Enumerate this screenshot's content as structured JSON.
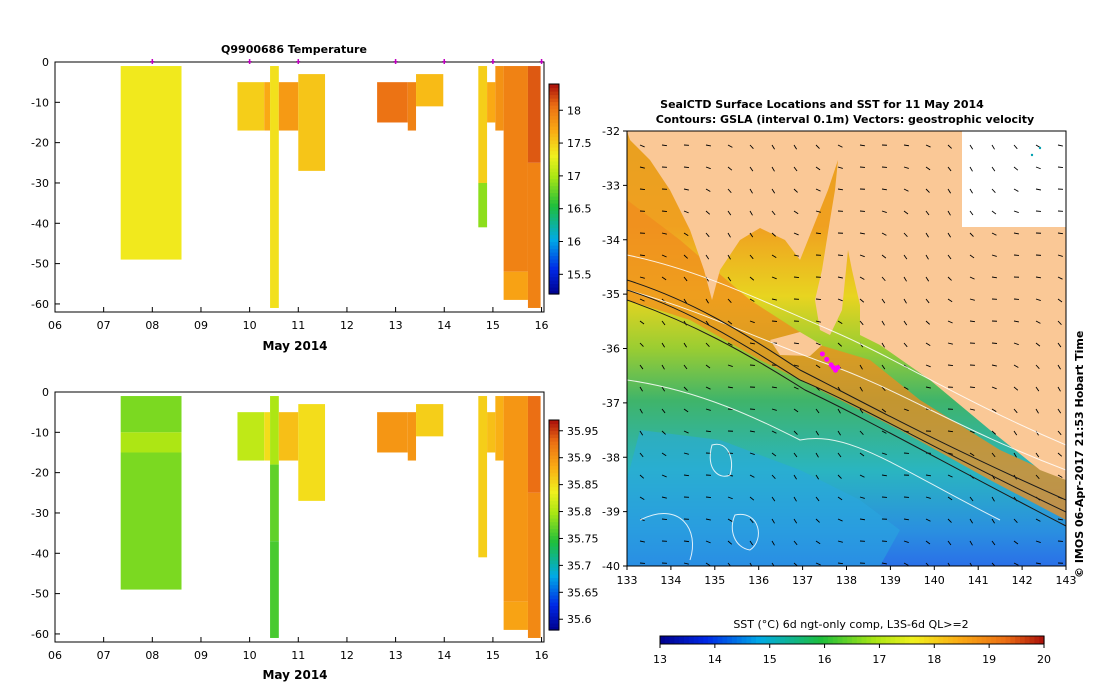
{
  "chart_data": [
    {
      "type": "heatmap",
      "title": "Q9900686  Temperature",
      "xlabel": "May 2014",
      "x_ticks": [
        "06",
        "07",
        "08",
        "09",
        "10",
        "11",
        "12",
        "13",
        "14",
        "15",
        "16"
      ],
      "y_ticks": [
        "0",
        "-10",
        "-20",
        "-30",
        "-40",
        "-50",
        "-60"
      ],
      "xlim": [
        6,
        16.05
      ],
      "ylim": [
        -62,
        0
      ],
      "colorbar": {
        "ticks": [
          "15.5",
          "16",
          "16.5",
          "17",
          "17.5",
          "18"
        ],
        "range": [
          15.2,
          18.4
        ]
      },
      "profile_markers": [
        8.0,
        10.0,
        11.0,
        13.0,
        14.0,
        15.0,
        16.0
      ],
      "profiles": [
        {
          "x0": 7.35,
          "x1": 8.6,
          "segments": [
            [
              -1,
              -49,
              17.35
            ]
          ]
        },
        {
          "x0": 9.75,
          "x1": 10.3,
          "segments": [
            [
              -5,
              -17,
              17.5
            ]
          ]
        },
        {
          "x0": 10.3,
          "x1": 10.42,
          "segments": [
            [
              -5,
              -17,
              17.7
            ]
          ]
        },
        {
          "x0": 10.42,
          "x1": 10.6,
          "segments": [
            [
              -1,
              -61,
              17.4
            ]
          ]
        },
        {
          "x0": 10.6,
          "x1": 11.0,
          "segments": [
            [
              -5,
              -17,
              17.8
            ]
          ]
        },
        {
          "x0": 11.0,
          "x1": 11.55,
          "segments": [
            [
              -3,
              -27,
              17.55
            ]
          ]
        },
        {
          "x0": 12.62,
          "x1": 13.25,
          "segments": [
            [
              -5,
              -15,
              18.05
            ]
          ]
        },
        {
          "x0": 13.25,
          "x1": 13.42,
          "segments": [
            [
              -5,
              -17,
              17.95
            ]
          ]
        },
        {
          "x0": 13.42,
          "x1": 13.98,
          "segments": [
            [
              -3,
              -11,
              17.6
            ]
          ]
        },
        {
          "x0": 14.7,
          "x1": 14.88,
          "segments": [
            [
              -1,
              -30,
              17.5
            ],
            [
              -30,
              -41,
              16.9
            ]
          ]
        },
        {
          "x0": 14.88,
          "x1": 15.05,
          "segments": [
            [
              -5,
              -15,
              17.7
            ]
          ]
        },
        {
          "x0": 15.05,
          "x1": 15.22,
          "segments": [
            [
              -1,
              -17,
              17.85
            ]
          ]
        },
        {
          "x0": 15.22,
          "x1": 15.72,
          "segments": [
            [
              -1,
              -52,
              17.95
            ],
            [
              -52,
              -59,
              17.75
            ]
          ]
        },
        {
          "x0": 15.72,
          "x1": 15.98,
          "segments": [
            [
              -1,
              -25,
              18.15
            ],
            [
              -25,
              -61,
              17.95
            ]
          ]
        }
      ]
    },
    {
      "type": "heatmap",
      "xlabel": "May 2014",
      "x_ticks": [
        "06",
        "07",
        "08",
        "09",
        "10",
        "11",
        "12",
        "13",
        "14",
        "15",
        "16"
      ],
      "y_ticks": [
        "0",
        "-10",
        "-20",
        "-30",
        "-40",
        "-50",
        "-60"
      ],
      "xlim": [
        6,
        16.05
      ],
      "ylim": [
        -62,
        0
      ],
      "colorbar": {
        "ticks": [
          "35.6",
          "35.65",
          "35.7",
          "35.75",
          "35.8",
          "35.85",
          "35.9",
          "35.95"
        ],
        "range": [
          35.58,
          35.97
        ]
      },
      "profiles": [
        {
          "x0": 7.35,
          "x1": 8.6,
          "segments": [
            [
              -1,
              -10,
              35.78
            ],
            [
              -10,
              -15,
              35.8
            ],
            [
              -15,
              -49,
              35.78
            ]
          ]
        },
        {
          "x0": 9.75,
          "x1": 10.3,
          "segments": [
            [
              -5,
              -17,
              35.81
            ]
          ]
        },
        {
          "x0": 10.3,
          "x1": 10.42,
          "segments": [
            [
              -5,
              -17,
              35.85
            ]
          ]
        },
        {
          "x0": 10.42,
          "x1": 10.6,
          "segments": [
            [
              -1,
              -18,
              35.8
            ],
            [
              -18,
              -37,
              35.77
            ],
            [
              -37,
              -61,
              35.76
            ]
          ]
        },
        {
          "x0": 10.6,
          "x1": 11.0,
          "segments": [
            [
              -5,
              -17,
              35.87
            ]
          ]
        },
        {
          "x0": 11.0,
          "x1": 11.55,
          "segments": [
            [
              -3,
              -27,
              35.85
            ]
          ]
        },
        {
          "x0": 12.62,
          "x1": 13.25,
          "segments": [
            [
              -5,
              -15,
              35.9
            ]
          ]
        },
        {
          "x0": 13.25,
          "x1": 13.42,
          "segments": [
            [
              -5,
              -17,
              35.9
            ]
          ]
        },
        {
          "x0": 13.42,
          "x1": 13.98,
          "segments": [
            [
              -3,
              -11,
              35.86
            ]
          ]
        },
        {
          "x0": 14.7,
          "x1": 14.88,
          "segments": [
            [
              -1,
              -41,
              35.86
            ]
          ]
        },
        {
          "x0": 14.88,
          "x1": 15.05,
          "segments": [
            [
              -5,
              -15,
              35.87
            ]
          ]
        },
        {
          "x0": 15.05,
          "x1": 15.22,
          "segments": [
            [
              -1,
              -17,
              35.88
            ]
          ]
        },
        {
          "x0": 15.22,
          "x1": 15.72,
          "segments": [
            [
              -1,
              -52,
              35.9
            ],
            [
              -52,
              -59,
              35.89
            ]
          ]
        },
        {
          "x0": 15.72,
          "x1": 15.98,
          "segments": [
            [
              -1,
              -25,
              35.93
            ],
            [
              -25,
              -61,
              35.91
            ]
          ]
        }
      ]
    },
    {
      "type": "map",
      "title_line1": "SealCTD Surface Locations and SST for 11 May 2014",
      "title_line2": "Contours: GSLA (interval 0.1m) Vectors: geostrophic velocity",
      "x_ticks": [
        "133",
        "134",
        "135",
        "136",
        "137",
        "138",
        "139",
        "140",
        "141",
        "142",
        "143"
      ],
      "y_ticks": [
        "-32",
        "-33",
        "-34",
        "-35",
        "-36",
        "-37",
        "-38",
        "-39",
        "-40"
      ],
      "xlim": [
        133,
        143
      ],
      "ylim": [
        -40,
        -32
      ],
      "colorbar_label": "SST (°C) 6d ngt-only comp, L3S-6d QL>=2",
      "colorbar_ticks": [
        "13",
        "14",
        "15",
        "16",
        "17",
        "18",
        "19",
        "20"
      ],
      "sst_range": [
        13,
        20
      ],
      "credit": "© IMOS 06-Apr-2017 21:53 Hobart Time",
      "seal_locations": [
        [
          137.45,
          -36.1
        ],
        [
          137.55,
          -36.2
        ],
        [
          137.65,
          -36.3
        ],
        [
          137.7,
          -36.35
        ],
        [
          137.75,
          -36.4
        ],
        [
          137.8,
          -36.35
        ]
      ]
    }
  ]
}
